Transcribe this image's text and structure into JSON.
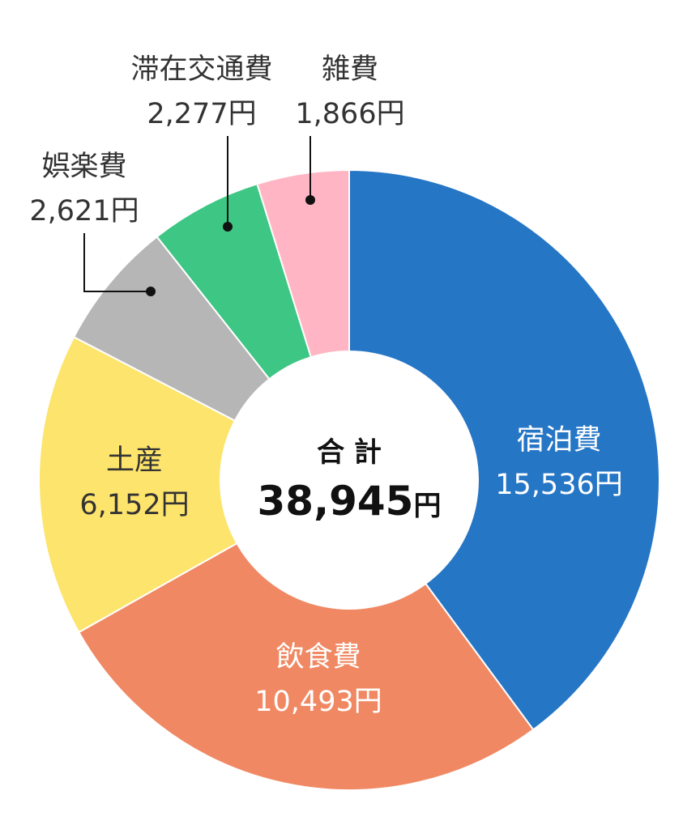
{
  "chart_data": {
    "type": "pie",
    "donut": true,
    "center": {
      "title": "合 計",
      "value": "38,945",
      "unit": "円"
    },
    "slices": [
      {
        "name": "宿泊費",
        "value": 15536,
        "value_label": "15,536円",
        "color": "#2676C6",
        "text_color": "#ffffff"
      },
      {
        "name": "飲食費",
        "value": 10493,
        "value_label": "10,493円",
        "color": "#F08963",
        "text_color": "#ffffff"
      },
      {
        "name": "土産",
        "value": 6152,
        "value_label": "6,152円",
        "color": "#FDE46C",
        "text_color": "#333333"
      },
      {
        "name": "娯楽費",
        "value": 2621,
        "value_label": "2,621円",
        "color": "#B6B6B6",
        "text_color": "#333333"
      },
      {
        "name": "滞在交通費",
        "value": 2277,
        "value_label": "2,277円",
        "color": "#3EC684",
        "text_color": "#333333"
      },
      {
        "name": "雑費",
        "value": 1866,
        "value_label": "1,866円",
        "color": "#FFB5C3",
        "text_color": "#333333"
      }
    ]
  }
}
